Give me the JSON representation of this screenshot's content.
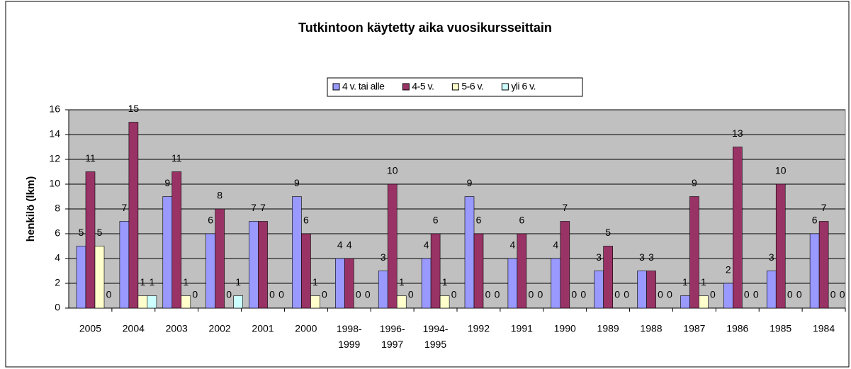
{
  "chart_data": {
    "type": "bar",
    "title": "Tutkintoon käytetty aika vuosikursseittain",
    "y_label": "henkilö (lkm)",
    "categories": [
      "2005",
      "2004",
      "2003",
      "2002",
      "2001",
      "2000",
      "1998-1999",
      "1996-1997",
      "1994-1995",
      "1992",
      "1991",
      "1990",
      "1989",
      "1988",
      "1987",
      "1986",
      "1985",
      "1984"
    ],
    "series": [
      {
        "name": "4 v. tai alle",
        "color": "#9999ff",
        "values": [
          5,
          7,
          9,
          6,
          7,
          9,
          4,
          3,
          4,
          9,
          4,
          4,
          3,
          3,
          1,
          2,
          3,
          6
        ]
      },
      {
        "name": "4-5 v.",
        "color": "#993366",
        "values": [
          11,
          15,
          11,
          8,
          7,
          6,
          4,
          10,
          6,
          6,
          6,
          7,
          5,
          3,
          9,
          13,
          10,
          7
        ]
      },
      {
        "name": "5-6 v.",
        "color": "#ffffcc",
        "values": [
          5,
          1,
          1,
          0,
          0,
          1,
          0,
          1,
          1,
          0,
          0,
          0,
          0,
          0,
          1,
          0,
          0,
          0
        ]
      },
      {
        "name": "yli 6 v.",
        "color": "#ccffff",
        "values": [
          0,
          1,
          0,
          1,
          0,
          0,
          0,
          0,
          0,
          0,
          0,
          0,
          0,
          0,
          0,
          0,
          0,
          0
        ]
      }
    ],
    "ylim": [
      0,
      16
    ],
    "yticks": [
      0,
      2,
      4,
      6,
      8,
      10,
      12,
      14,
      16
    ],
    "grid": true,
    "legend": "top"
  }
}
